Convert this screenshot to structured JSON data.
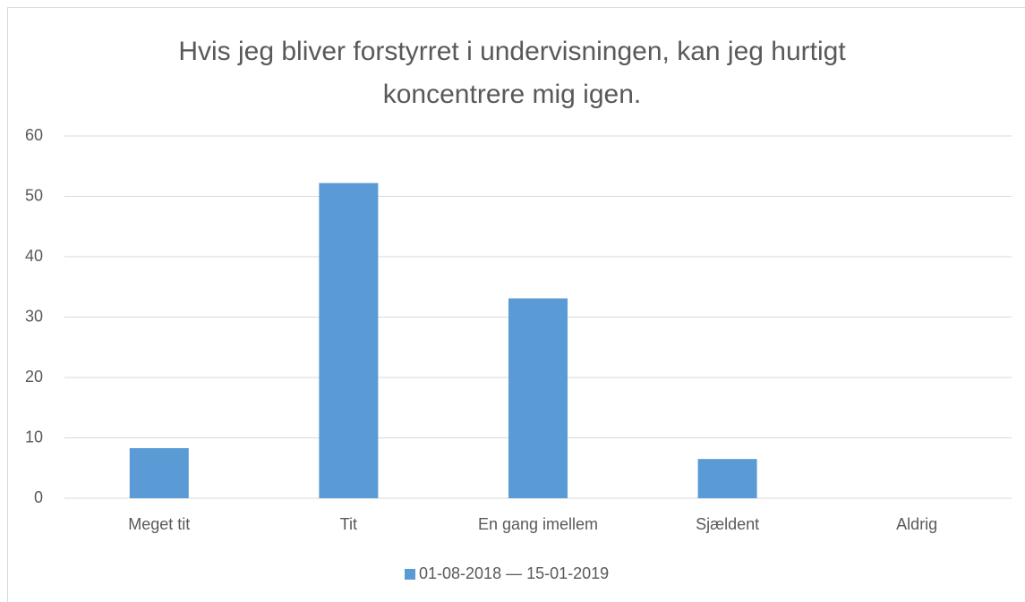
{
  "chart_data": {
    "type": "bar",
    "title": "Hvis jeg bliver forstyrret i undervisningen, kan jeg hurtigt koncentrere mig igen.",
    "categories": [
      "Meget tit",
      "Tit",
      "En gang imellem",
      "Sjældent",
      "Aldrig"
    ],
    "series": [
      {
        "name": "01-08-2018 — 15-01-2019",
        "color": "#5b9bd5",
        "values": [
          8.3,
          52.2,
          33.1,
          6.5,
          0
        ]
      }
    ],
    "ylim": [
      0,
      60
    ],
    "yticks": [
      0,
      10,
      20,
      30,
      40,
      50,
      60
    ],
    "grid": true,
    "legend": "bottom"
  }
}
